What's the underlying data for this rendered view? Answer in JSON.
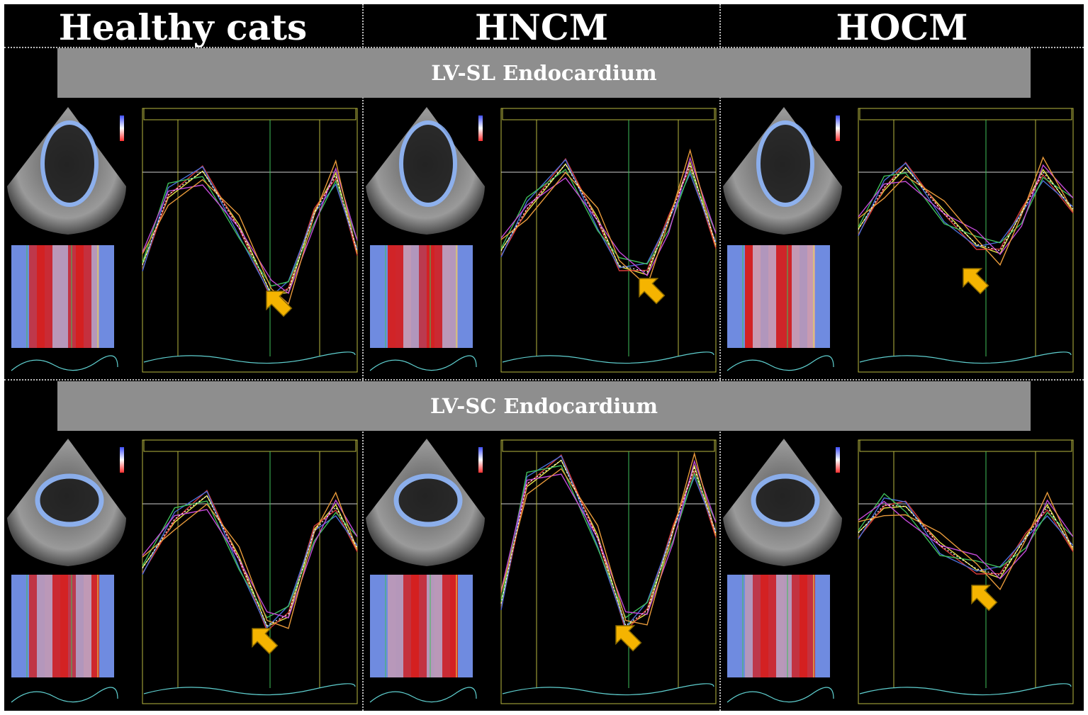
{
  "columns": [
    {
      "label": "Healthy cats"
    },
    {
      "label": "HNCM"
    },
    {
      "label": "HOCM"
    }
  ],
  "rows": [
    {
      "label": "LV-SL Endocardium",
      "view": "long-axis"
    },
    {
      "label": "LV-SC Endocardium",
      "view": "short-axis"
    }
  ],
  "colors": {
    "background": "#000000",
    "banner": "#8e8e8e",
    "arrow": "#f5b400",
    "segments": [
      "#e8e34a",
      "#d83a3a",
      "#4a6ed8",
      "#3fbf5a",
      "#c44ad8",
      "#e89a3a"
    ],
    "strain_positive": "#d42020",
    "strain_negative": "#6f8be0"
  },
  "icons": {
    "arrow": "yellow-arrow-icon",
    "echo": "echocardiogram-sector-image",
    "heatmap": "strain-color-map",
    "graph": "strain-curve-graph"
  }
}
